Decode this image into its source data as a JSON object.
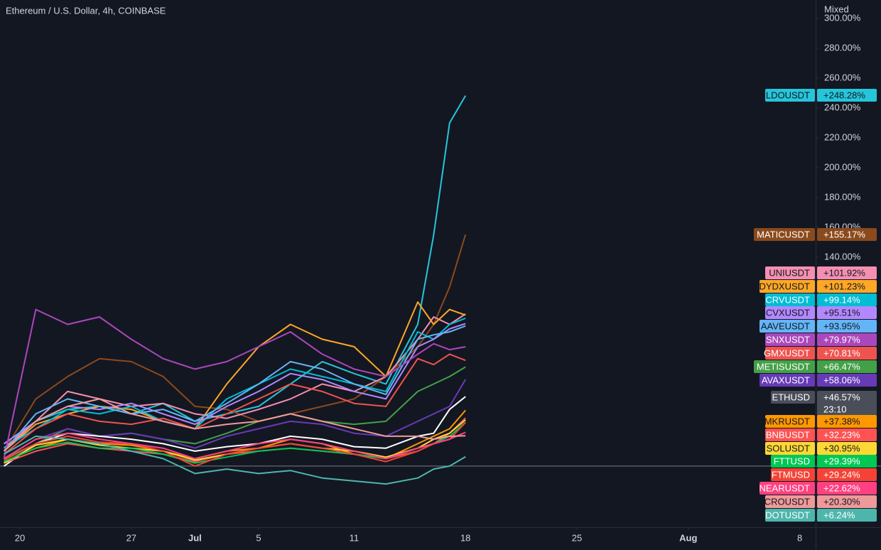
{
  "chart_data": {
    "type": "line",
    "title": "Ethereum / U.S. Dollar, 4h, COINBASE",
    "scale_mode": "Mixed",
    "countdown": "23:10",
    "x": [
      -1,
      1,
      3,
      5,
      7,
      9,
      11,
      13,
      15,
      17,
      19,
      21,
      23,
      25,
      26,
      27,
      28
    ],
    "xlim": [
      -1.25,
      50
    ],
    "xticks": [
      {
        "value": 0,
        "label": "20"
      },
      {
        "value": 7,
        "label": "27"
      },
      {
        "value": 11,
        "label": "Jul"
      },
      {
        "value": 15,
        "label": "5"
      },
      {
        "value": 21,
        "label": "11"
      },
      {
        "value": 28,
        "label": "18"
      },
      {
        "value": 35,
        "label": "25"
      },
      {
        "value": 42,
        "label": "Aug"
      },
      {
        "value": 49,
        "label": "8"
      }
    ],
    "ylim": [
      -41,
      312.4
    ],
    "yticks": [
      {
        "value": 140,
        "label": "140.00%"
      },
      {
        "value": 160,
        "label": "160.00%"
      },
      {
        "value": 180,
        "label": "180.00%"
      },
      {
        "value": 200,
        "label": "200.00%"
      },
      {
        "value": 220,
        "label": "220.00%"
      },
      {
        "value": 240,
        "label": "240.00%"
      },
      {
        "value": 260,
        "label": "260.00%"
      },
      {
        "value": 280,
        "label": "280.00%"
      },
      {
        "value": 300,
        "label": "300.00%"
      }
    ],
    "series": [
      {
        "name": "LDOUSDT",
        "color": "#26c6da",
        "values": [
          15,
          30,
          38,
          40,
          35,
          42,
          30,
          35,
          40,
          55,
          70,
          62,
          55,
          95,
          155,
          230,
          248.28
        ],
        "value_labels": [
          null,
          null,
          null,
          null,
          null,
          null,
          null,
          null,
          null,
          null,
          null,
          null,
          null,
          null,
          null,
          null,
          "+248.28%"
        ]
      },
      {
        "name": "MATICUSDT",
        "color": "#8b4a1c",
        "values": [
          10,
          45,
          60,
          72,
          70,
          60,
          40,
          38,
          30,
          35,
          40,
          45,
          60,
          80,
          95,
          120,
          155.17
        ],
        "value_labels": [
          null,
          null,
          null,
          null,
          null,
          null,
          null,
          null,
          null,
          null,
          null,
          null,
          null,
          null,
          null,
          null,
          "+155.17%"
        ]
      },
      {
        "name": "UNIUSDT",
        "color": "#f48fb1",
        "values": [
          12,
          30,
          50,
          45,
          40,
          42,
          35,
          32,
          38,
          45,
          55,
          50,
          60,
          85,
          100,
          95,
          101.92
        ],
        "value_labels": [
          null,
          null,
          null,
          null,
          null,
          null,
          null,
          null,
          null,
          null,
          null,
          null,
          null,
          null,
          null,
          null,
          "+101.92%"
        ]
      },
      {
        "name": "DYDXUSDT",
        "color": "#ffa726",
        "values": [
          10,
          28,
          35,
          40,
          38,
          30,
          25,
          55,
          80,
          95,
          85,
          80,
          60,
          110,
          95,
          105,
          101.23
        ],
        "value_labels": [
          null,
          null,
          null,
          null,
          null,
          null,
          null,
          null,
          null,
          null,
          null,
          null,
          null,
          null,
          null,
          null,
          "+101.23%"
        ]
      },
      {
        "name": "CRVUSDT",
        "color": "#00bcd4",
        "values": [
          12,
          25,
          38,
          35,
          40,
          30,
          25,
          45,
          55,
          65,
          60,
          55,
          50,
          90,
          85,
          95,
          99.14
        ],
        "value_labels": [
          null,
          null,
          null,
          null,
          null,
          null,
          null,
          null,
          null,
          null,
          null,
          null,
          null,
          null,
          null,
          null,
          "+99.14%"
        ]
      },
      {
        "name": "CVXUSDT",
        "color": "#b388ff",
        "values": [
          15,
          30,
          40,
          38,
          42,
          35,
          28,
          40,
          50,
          62,
          58,
          50,
          45,
          80,
          85,
          92,
          95.51
        ],
        "value_labels": [
          null,
          null,
          null,
          null,
          null,
          null,
          null,
          null,
          null,
          null,
          null,
          null,
          null,
          null,
          null,
          null,
          "+95.51%"
        ]
      },
      {
        "name": "AAVEUSDT",
        "color": "#64b5f6",
        "values": [
          10,
          35,
          45,
          40,
          35,
          38,
          30,
          42,
          55,
          70,
          65,
          55,
          48,
          85,
          88,
          90,
          93.95
        ],
        "value_labels": [
          null,
          null,
          null,
          null,
          null,
          null,
          null,
          null,
          null,
          null,
          null,
          null,
          null,
          null,
          null,
          null,
          "+93.95%"
        ]
      },
      {
        "name": "SNXUSDT",
        "color": "#ab47bc",
        "values": [
          5,
          105,
          95,
          100,
          85,
          72,
          65,
          70,
          80,
          90,
          75,
          65,
          60,
          75,
          82,
          78,
          79.97
        ],
        "value_labels": [
          null,
          null,
          null,
          null,
          null,
          null,
          null,
          null,
          null,
          null,
          null,
          null,
          null,
          null,
          null,
          null,
          "+79.97%"
        ]
      },
      {
        "name": "GMXUSDT",
        "color": "#ef5350",
        "values": [
          8,
          25,
          35,
          30,
          28,
          32,
          25,
          35,
          45,
          55,
          50,
          42,
          40,
          72,
          68,
          75,
          70.81
        ],
        "value_labels": [
          null,
          null,
          null,
          null,
          null,
          null,
          null,
          null,
          null,
          null,
          null,
          null,
          null,
          null,
          null,
          null,
          "+70.81%"
        ]
      },
      {
        "name": "METISUSDT",
        "color": "#43a047",
        "values": [
          5,
          15,
          25,
          20,
          22,
          18,
          15,
          22,
          30,
          35,
          30,
          28,
          30,
          50,
          55,
          60,
          66.47
        ],
        "value_labels": [
          null,
          null,
          null,
          null,
          null,
          null,
          null,
          null,
          null,
          null,
          null,
          null,
          null,
          null,
          null,
          null,
          "+66.47%"
        ]
      },
      {
        "name": "AVAXUSDT",
        "color": "#673ab7",
        "values": [
          5,
          18,
          25,
          20,
          22,
          18,
          12,
          20,
          25,
          30,
          28,
          22,
          20,
          30,
          35,
          40,
          58.06
        ],
        "value_labels": [
          null,
          null,
          null,
          null,
          null,
          null,
          null,
          null,
          null,
          null,
          null,
          null,
          null,
          null,
          null,
          null,
          "+58.06%"
        ]
      },
      {
        "name": "ETHUSD",
        "color": "#ffffff",
        "values": [
          0,
          15,
          22,
          20,
          18,
          15,
          10,
          13,
          15,
          20,
          18,
          13,
          12,
          20,
          22,
          38,
          46.57
        ],
        "value_labels": [
          null,
          null,
          null,
          null,
          null,
          null,
          null,
          null,
          null,
          null,
          null,
          null,
          null,
          null,
          null,
          null,
          "+46.57%"
        ]
      },
      {
        "name": "MKRUSDT",
        "color": "#ff9800",
        "values": [
          3,
          12,
          18,
          15,
          14,
          10,
          5,
          10,
          12,
          18,
          15,
          8,
          5,
          15,
          20,
          25,
          37.38
        ],
        "value_labels": [
          null,
          null,
          null,
          null,
          null,
          null,
          null,
          null,
          null,
          null,
          null,
          null,
          null,
          null,
          null,
          null,
          "+37.38%"
        ]
      },
      {
        "name": "BNBUSDT",
        "color": "#ff5252",
        "values": [
          2,
          10,
          15,
          12,
          10,
          8,
          3,
          8,
          10,
          12,
          10,
          8,
          5,
          10,
          15,
          22,
          32.23
        ],
        "value_labels": [
          null,
          null,
          null,
          null,
          null,
          null,
          null,
          null,
          null,
          null,
          null,
          null,
          null,
          null,
          null,
          null,
          "+32.23%"
        ]
      },
      {
        "name": "SOLUSDT",
        "color": "#fdd835",
        "values": [
          2,
          14,
          18,
          14,
          12,
          10,
          4,
          8,
          12,
          15,
          12,
          10,
          6,
          12,
          18,
          22,
          30.95
        ],
        "value_labels": [
          null,
          null,
          null,
          null,
          null,
          null,
          null,
          null,
          null,
          null,
          null,
          null,
          null,
          null,
          null,
          null,
          "+30.95%"
        ]
      },
      {
        "name": "FTTUSD",
        "color": "#00c853",
        "values": [
          3,
          12,
          16,
          12,
          12,
          8,
          2,
          6,
          10,
          12,
          10,
          8,
          5,
          12,
          15,
          20,
          29.39
        ],
        "value_labels": [
          null,
          null,
          null,
          null,
          null,
          null,
          null,
          null,
          null,
          null,
          null,
          null,
          null,
          null,
          null,
          null,
          "+29.39%"
        ]
      },
      {
        "name": "FTMUSD",
        "color": "#f44336",
        "values": [
          4,
          15,
          20,
          16,
          15,
          10,
          0,
          8,
          12,
          15,
          12,
          8,
          3,
          10,
          15,
          18,
          29.24
        ],
        "value_labels": [
          null,
          null,
          null,
          null,
          null,
          null,
          null,
          null,
          null,
          null,
          null,
          null,
          null,
          null,
          null,
          null,
          "+29.24%"
        ]
      },
      {
        "name": "NEARUSDT",
        "color": "#ff4081",
        "values": [
          5,
          18,
          22,
          18,
          15,
          12,
          5,
          10,
          15,
          18,
          15,
          10,
          5,
          12,
          15,
          18,
          22.62
        ],
        "value_labels": [
          null,
          null,
          null,
          null,
          null,
          null,
          null,
          null,
          null,
          null,
          null,
          null,
          null,
          null,
          null,
          null,
          "+22.62%"
        ]
      },
      {
        "name": "CROUSDT",
        "color": "#ef9a9a",
        "values": [
          10,
          30,
          40,
          45,
          35,
          30,
          25,
          28,
          30,
          35,
          30,
          25,
          20,
          20,
          18,
          20,
          20.3
        ],
        "value_labels": [
          null,
          null,
          null,
          null,
          null,
          null,
          null,
          null,
          null,
          null,
          null,
          null,
          null,
          null,
          null,
          null,
          "+20.30%"
        ]
      },
      {
        "name": "DOTUSDT",
        "color": "#4db6ac",
        "values": [
          8,
          20,
          18,
          15,
          10,
          5,
          -5,
          -2,
          -5,
          -3,
          -8,
          -10,
          -12,
          -8,
          -2,
          0,
          6.24
        ],
        "value_labels": [
          null,
          null,
          null,
          null,
          null,
          null,
          null,
          null,
          null,
          null,
          null,
          null,
          null,
          null,
          null,
          null,
          "+6.24%"
        ]
      }
    ]
  }
}
